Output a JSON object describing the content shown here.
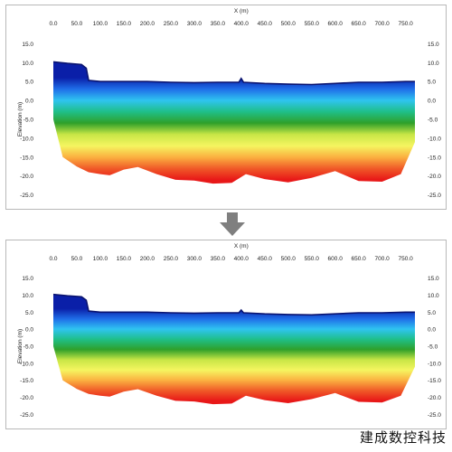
{
  "chart_data": [
    {
      "type": "heatmap",
      "xlabel": "X (m)",
      "ylabel": "Elevation (m)",
      "xlim": [
        0,
        770
      ],
      "ylim": [
        -27,
        17
      ],
      "x_ticks": [
        "0.0",
        "50.0",
        "100.0",
        "150.0",
        "200.0",
        "250.0",
        "300.0",
        "350.0",
        "400.0",
        "450.0",
        "500.0",
        "550.0",
        "600.0",
        "650.0",
        "700.0",
        "750.0"
      ],
      "y_ticks": [
        "15.0",
        "10.0",
        "5.0",
        "0.0",
        "-5.0",
        "-10.0",
        "-15.0",
        "-20.0",
        "-25.0"
      ],
      "colorscale": [
        "#0a1fa8",
        "#1f6ee8",
        "#2fc4f0",
        "#1fbf88",
        "#2fa02a",
        "#c8e646",
        "#f5f560",
        "#fbb040",
        "#f05a28",
        "#e81818"
      ],
      "surface_profile": {
        "x": [
          0,
          30,
          60,
          70,
          75,
          100,
          150,
          200,
          250,
          300,
          350,
          395,
          400,
          405,
          450,
          500,
          550,
          600,
          650,
          700,
          750,
          770
        ],
        "z": [
          10.2,
          9.8,
          9.5,
          8.5,
          5.3,
          5.0,
          5.0,
          5.0,
          4.8,
          4.7,
          4.8,
          4.8,
          5.8,
          4.8,
          4.5,
          4.3,
          4.2,
          4.5,
          4.8,
          4.8,
          5.0,
          5.0
        ]
      },
      "bottom_profile": {
        "x": [
          0,
          20,
          50,
          75,
          100,
          120,
          150,
          180,
          220,
          260,
          300,
          340,
          380,
          410,
          450,
          500,
          550,
          600,
          650,
          700,
          740,
          770
        ],
        "z": [
          -5,
          -15,
          -17.5,
          -19,
          -19.5,
          -19.8,
          -18.3,
          -17.6,
          -19.5,
          -21,
          -21.2,
          -22,
          -21.8,
          -19.5,
          -20.8,
          -21.7,
          -20.5,
          -18.7,
          -21.3,
          -21.5,
          -19.5,
          -11
        ]
      }
    },
    {
      "type": "heatmap",
      "xlabel": "X (m)",
      "ylabel": "Elevation (m)",
      "xlim": [
        0,
        770
      ],
      "ylim": [
        -27,
        17
      ],
      "x_ticks": [
        "0.0",
        "50.0",
        "100.0",
        "150.0",
        "200.0",
        "250.0",
        "300.0",
        "350.0",
        "400.0",
        "450.0",
        "500.0",
        "550.0",
        "600.0",
        "650.0",
        "700.0",
        "750.0"
      ],
      "y_ticks": [
        "15.0",
        "10.0",
        "5.0",
        "0.0",
        "-5.0",
        "-10.0",
        "-15.0",
        "-20.0",
        "-25.0"
      ],
      "colorscale": [
        "#0a1fa8",
        "#1f6ee8",
        "#2fc4f0",
        "#1fbf88",
        "#2fa02a",
        "#c8e646",
        "#f5f560",
        "#fbb040",
        "#f05a28",
        "#e81818"
      ],
      "surface_profile": {
        "x": [
          0,
          30,
          60,
          70,
          75,
          100,
          150,
          200,
          250,
          300,
          350,
          395,
          400,
          405,
          450,
          500,
          550,
          600,
          650,
          700,
          750,
          770
        ],
        "z": [
          10.2,
          9.8,
          9.5,
          8.5,
          5.3,
          5.0,
          5.0,
          5.0,
          4.8,
          4.7,
          4.8,
          4.8,
          5.6,
          4.8,
          4.5,
          4.3,
          4.2,
          4.5,
          4.8,
          4.8,
          5.0,
          5.0
        ]
      },
      "bottom_profile": {
        "x": [
          0,
          20,
          50,
          75,
          100,
          120,
          150,
          180,
          220,
          260,
          300,
          340,
          380,
          410,
          450,
          500,
          550,
          600,
          650,
          700,
          740,
          770
        ],
        "z": [
          -5,
          -15,
          -17.5,
          -19,
          -19.5,
          -19.8,
          -18.3,
          -17.6,
          -19.5,
          -21,
          -21.2,
          -22,
          -21.8,
          -19.5,
          -20.8,
          -21.7,
          -20.5,
          -18.7,
          -21.3,
          -21.5,
          -19.5,
          -11
        ]
      }
    }
  ],
  "arrow": {
    "icon": "down-arrow-icon",
    "color": "#7f7f7f"
  },
  "watermark": "建成数控科技"
}
